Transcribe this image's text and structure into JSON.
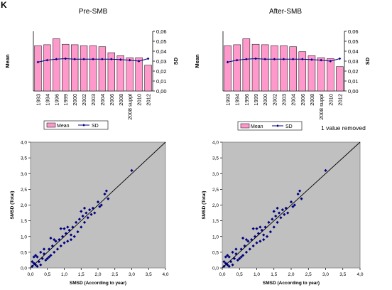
{
  "panel_label": "K",
  "note": "1 value removed",
  "colors": {
    "bar_fill": "#ff99cc",
    "bar_stroke": "#000000",
    "line": "#000080",
    "scatter_bg": "#c0c0c0",
    "point": "#000080"
  },
  "chart_data": [
    {
      "id": "pre-bars",
      "type": "bar",
      "title": "Pre-SMB",
      "ylabel": "Mean",
      "y2label": "SD",
      "categories": [
        "1993",
        "1994",
        "1996",
        "1999",
        "2000",
        "2002",
        "2003",
        "2004",
        "2006",
        "2008",
        "2008 suppl",
        "2010",
        "2012"
      ],
      "series": [
        {
          "name": "Mean",
          "type": "bar",
          "values": [
            0.0455,
            0.0465,
            0.0525,
            0.047,
            0.0465,
            0.0455,
            0.0455,
            0.0445,
            0.0385,
            0.0355,
            0.0335,
            0.0335,
            0.026
          ]
        },
        {
          "name": "SD",
          "type": "line",
          "values": [
            0.029,
            0.031,
            0.032,
            0.0325,
            0.032,
            0.032,
            0.032,
            0.032,
            0.032,
            0.0315,
            0.031,
            0.03,
            0.0325
          ]
        }
      ],
      "y2lim": [
        0,
        0.06
      ],
      "y2ticks": [
        "0,00",
        "0,01",
        "0,02",
        "0,03",
        "0,04",
        "0,05",
        "0,06"
      ],
      "legend": [
        {
          "name": "Mean"
        },
        {
          "name": "SD"
        }
      ]
    },
    {
      "id": "post-bars",
      "type": "bar",
      "title": "After-SMB",
      "ylabel": "Mean",
      "y2label": "SD",
      "categories": [
        "1993",
        "1994",
        "1996",
        "1999",
        "2000",
        "2002",
        "2003",
        "2004",
        "2006",
        "2008",
        "2008 suppl",
        "2010",
        "2012"
      ],
      "series": [
        {
          "name": "Mean",
          "type": "bar",
          "values": [
            0.0455,
            0.0465,
            0.0525,
            0.047,
            0.0465,
            0.0455,
            0.0455,
            0.0445,
            0.0395,
            0.0355,
            0.0335,
            0.0325,
            0.0245
          ]
        },
        {
          "name": "SD",
          "type": "line",
          "values": [
            0.029,
            0.031,
            0.032,
            0.0325,
            0.032,
            0.032,
            0.032,
            0.032,
            0.032,
            0.0315,
            0.031,
            0.03,
            0.0325
          ]
        }
      ],
      "y2lim": [
        0,
        0.06
      ],
      "y2ticks": [
        "0,00",
        "0,01",
        "0,02",
        "0,03",
        "0,04",
        "0,05",
        "0,06"
      ],
      "legend": [
        {
          "name": "Mean"
        },
        {
          "name": "SD"
        }
      ]
    },
    {
      "id": "pre-scatter",
      "type": "scatter",
      "xlabel": "SMSD (According to year)",
      "ylabel": "SMSD (Total)",
      "xlim": [
        0,
        4
      ],
      "ylim": [
        0,
        4
      ],
      "xticks": [
        "0,0",
        "0,5",
        "1,0",
        "1,5",
        "2,0",
        "2,5",
        "3,0",
        "3,5",
        "4,0"
      ],
      "yticks": [
        "0,0",
        "0,5",
        "1,0",
        "1,5",
        "2,0",
        "2,5",
        "3,0",
        "3,5",
        "4,0"
      ],
      "reference_line": [
        [
          0,
          0
        ],
        [
          4,
          4
        ]
      ],
      "points": [
        [
          0.05,
          0.05
        ],
        [
          0.1,
          0.15
        ],
        [
          0.15,
          0.1
        ],
        [
          0.2,
          0.05
        ],
        [
          0.05,
          0.2
        ],
        [
          0.25,
          0.2
        ],
        [
          0.3,
          0.1
        ],
        [
          0.1,
          0.35
        ],
        [
          0.2,
          0.35
        ],
        [
          0.35,
          0.3
        ],
        [
          0.4,
          0.45
        ],
        [
          0.45,
          0.25
        ],
        [
          0.5,
          0.3
        ],
        [
          0.3,
          0.5
        ],
        [
          0.55,
          0.6
        ],
        [
          0.6,
          0.4
        ],
        [
          0.65,
          0.7
        ],
        [
          0.7,
          0.5
        ],
        [
          0.75,
          0.85
        ],
        [
          0.8,
          0.6
        ],
        [
          0.85,
          0.9
        ],
        [
          0.9,
          0.7
        ],
        [
          0.95,
          1.0
        ],
        [
          1.0,
          0.8
        ],
        [
          1.05,
          1.1
        ],
        [
          1.1,
          0.85
        ],
        [
          1.15,
          1.2
        ],
        [
          1.2,
          0.9
        ],
        [
          1.25,
          1.3
        ],
        [
          1.3,
          1.0
        ],
        [
          1.35,
          1.45
        ],
        [
          1.4,
          1.15
        ],
        [
          1.45,
          1.55
        ],
        [
          1.5,
          1.3
        ],
        [
          1.55,
          1.65
        ],
        [
          1.6,
          1.45
        ],
        [
          1.65,
          1.75
        ],
        [
          1.7,
          1.6
        ],
        [
          1.75,
          1.85
        ],
        [
          1.8,
          1.7
        ],
        [
          1.85,
          1.9
        ],
        [
          1.9,
          1.75
        ],
        [
          2.0,
          2.1
        ],
        [
          2.05,
          1.95
        ],
        [
          2.1,
          2.0
        ],
        [
          2.2,
          2.35
        ],
        [
          2.25,
          2.45
        ],
        [
          2.3,
          2.2
        ],
        [
          3.0,
          3.1
        ],
        [
          0.15,
          0.4
        ],
        [
          0.4,
          0.6
        ],
        [
          0.6,
          0.95
        ],
        [
          0.9,
          1.25
        ],
        [
          1.1,
          1.3
        ],
        [
          1.5,
          1.8
        ],
        [
          0.7,
          0.9
        ],
        [
          1.2,
          1.05
        ],
        [
          0.55,
          0.35
        ],
        [
          1.0,
          1.25
        ],
        [
          1.6,
          1.9
        ]
      ]
    },
    {
      "id": "post-scatter",
      "type": "scatter",
      "xlabel": "SMSD (According to year)",
      "ylabel": "SMSD (Total)",
      "xlim": [
        0,
        4
      ],
      "ylim": [
        0,
        4
      ],
      "xticks": [
        "0,0",
        "0,5",
        "1,0",
        "1,5",
        "2,0",
        "2,5",
        "3,0",
        "3,5",
        "4,0"
      ],
      "yticks": [
        "0,0",
        "0,5",
        "1,0",
        "1,5",
        "2,0",
        "2,5",
        "3,0",
        "3,5",
        "4,0"
      ],
      "reference_line": [
        [
          0,
          0
        ],
        [
          4,
          4
        ]
      ],
      "points": [
        [
          0.05,
          0.05
        ],
        [
          0.1,
          0.15
        ],
        [
          0.15,
          0.1
        ],
        [
          0.2,
          0.05
        ],
        [
          0.05,
          0.2
        ],
        [
          0.25,
          0.2
        ],
        [
          0.3,
          0.1
        ],
        [
          0.1,
          0.35
        ],
        [
          0.2,
          0.35
        ],
        [
          0.35,
          0.3
        ],
        [
          0.4,
          0.45
        ],
        [
          0.45,
          0.25
        ],
        [
          0.5,
          0.3
        ],
        [
          0.3,
          0.5
        ],
        [
          0.55,
          0.6
        ],
        [
          0.6,
          0.4
        ],
        [
          0.65,
          0.7
        ],
        [
          0.7,
          0.5
        ],
        [
          0.75,
          0.85
        ],
        [
          0.8,
          0.6
        ],
        [
          0.85,
          0.9
        ],
        [
          0.9,
          0.7
        ],
        [
          0.95,
          1.0
        ],
        [
          1.0,
          0.8
        ],
        [
          1.05,
          1.1
        ],
        [
          1.1,
          0.85
        ],
        [
          1.15,
          1.2
        ],
        [
          1.2,
          0.9
        ],
        [
          1.25,
          1.3
        ],
        [
          1.3,
          1.0
        ],
        [
          1.35,
          1.45
        ],
        [
          1.4,
          1.15
        ],
        [
          1.45,
          1.55
        ],
        [
          1.5,
          1.3
        ],
        [
          1.55,
          1.65
        ],
        [
          1.6,
          1.45
        ],
        [
          1.65,
          1.75
        ],
        [
          1.7,
          1.6
        ],
        [
          1.75,
          1.85
        ],
        [
          1.8,
          1.7
        ],
        [
          1.85,
          1.9
        ],
        [
          1.9,
          1.75
        ],
        [
          2.0,
          2.1
        ],
        [
          2.05,
          1.95
        ],
        [
          2.1,
          2.0
        ],
        [
          2.2,
          2.35
        ],
        [
          2.25,
          2.45
        ],
        [
          2.3,
          2.2
        ],
        [
          3.0,
          3.1
        ],
        [
          0.15,
          0.4
        ],
        [
          0.4,
          0.6
        ],
        [
          0.6,
          0.95
        ],
        [
          0.9,
          1.25
        ],
        [
          1.1,
          1.3
        ],
        [
          1.5,
          1.8
        ],
        [
          0.7,
          0.9
        ],
        [
          1.2,
          1.05
        ],
        [
          0.55,
          0.35
        ],
        [
          1.0,
          1.25
        ],
        [
          1.6,
          1.9
        ]
      ]
    }
  ]
}
